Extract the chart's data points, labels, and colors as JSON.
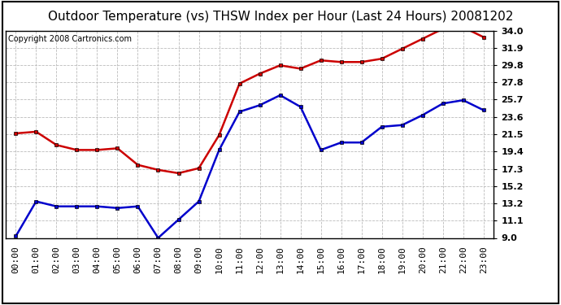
{
  "title": "Outdoor Temperature (vs) THSW Index per Hour (Last 24 Hours) 20081202",
  "copyright": "Copyright 2008 Cartronics.com",
  "x_labels": [
    "00:00",
    "01:00",
    "02:00",
    "03:00",
    "04:00",
    "05:00",
    "06:00",
    "07:00",
    "08:00",
    "09:00",
    "10:00",
    "11:00",
    "12:00",
    "13:00",
    "14:00",
    "15:00",
    "16:00",
    "17:00",
    "18:00",
    "19:00",
    "20:00",
    "21:00",
    "22:00",
    "23:00"
  ],
  "temp_data": [
    9.2,
    13.4,
    12.8,
    12.8,
    12.8,
    12.6,
    12.8,
    9.0,
    11.2,
    13.4,
    19.6,
    24.2,
    25.0,
    26.2,
    24.8,
    19.6,
    20.5,
    20.5,
    22.4,
    22.6,
    23.8,
    25.2,
    25.6,
    24.4
  ],
  "thsw_data": [
    21.6,
    21.8,
    20.2,
    19.6,
    19.6,
    19.8,
    17.8,
    17.2,
    16.8,
    17.4,
    21.4,
    27.6,
    28.8,
    29.8,
    29.4,
    30.4,
    30.2,
    30.2,
    30.6,
    31.8,
    33.0,
    34.2,
    34.4,
    33.2
  ],
  "temp_color": "#0000cc",
  "thsw_color": "#cc0000",
  "y_min": 9.0,
  "y_max": 34.0,
  "y_ticks": [
    9.0,
    11.1,
    13.2,
    15.2,
    17.3,
    19.4,
    21.5,
    23.6,
    25.7,
    27.8,
    29.8,
    31.9,
    34.0
  ],
  "bg_color": "#ffffff",
  "plot_bg_color": "#ffffff",
  "grid_color": "#bbbbbb",
  "title_fontsize": 11,
  "copyright_fontsize": 7,
  "tick_fontsize": 8
}
